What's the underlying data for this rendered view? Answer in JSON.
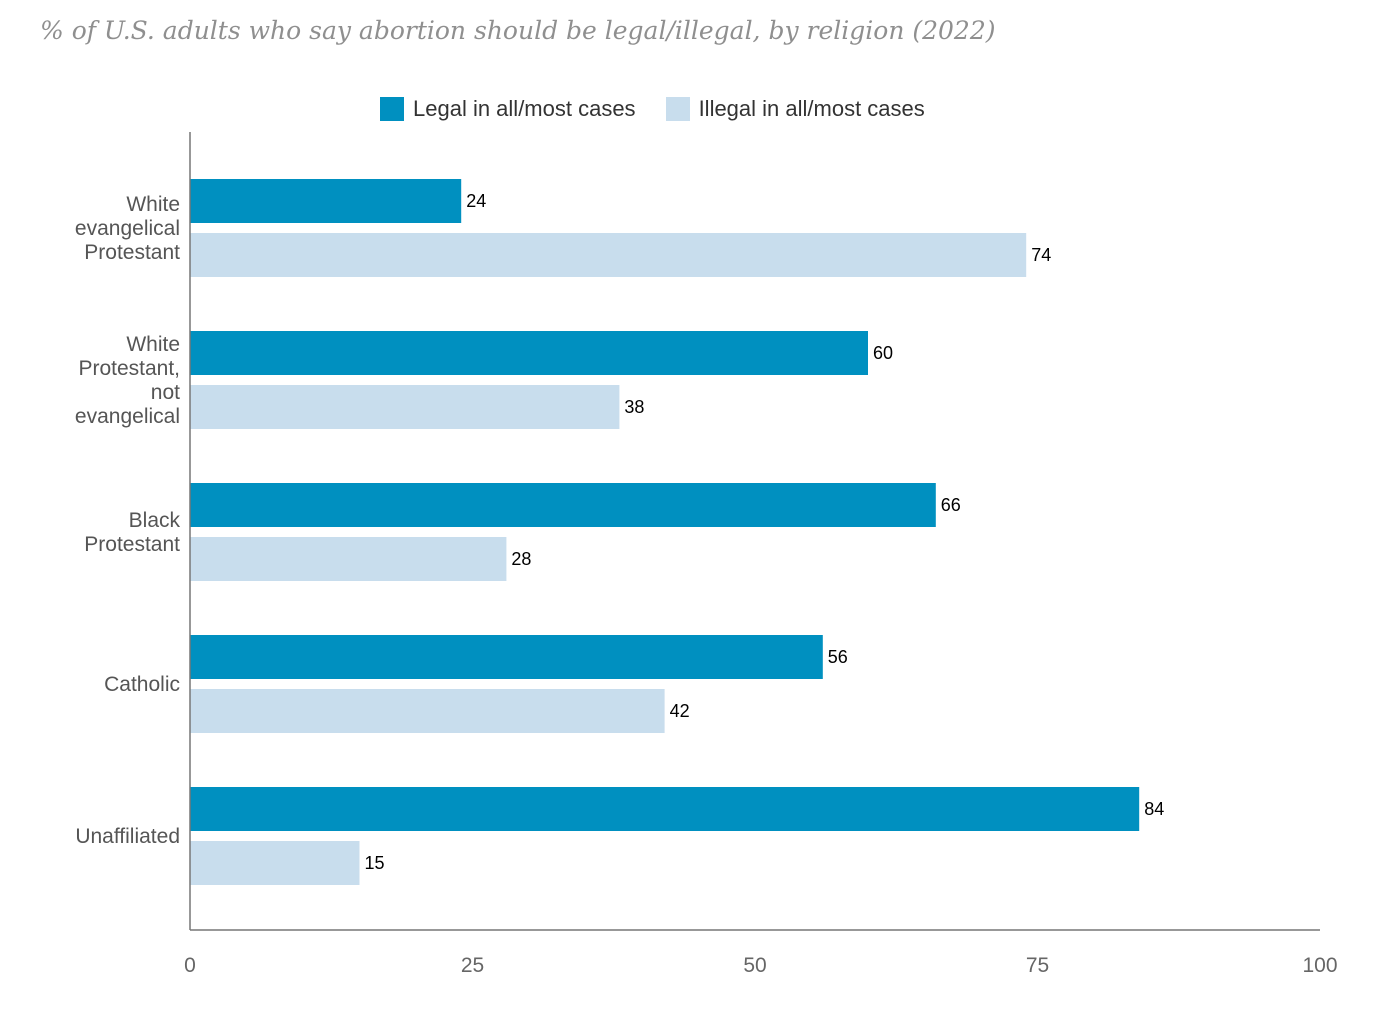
{
  "chart_data": {
    "type": "bar",
    "orientation": "horizontal",
    "title": "% of U.S. adults who say abortion should be legal/illegal, by religion (2022)",
    "categories": [
      [
        "White",
        "evangelical",
        "Protestant"
      ],
      [
        "White",
        "Protestant,",
        "not",
        "evangelical"
      ],
      [
        "Black",
        "Protestant"
      ],
      [
        "Catholic"
      ],
      [
        "Unaffiliated"
      ]
    ],
    "series": [
      {
        "name": "Legal in all/most cases",
        "color": "#0090c0",
        "values": [
          24,
          60,
          66,
          56,
          84
        ]
      },
      {
        "name": "Illegal in all/most cases",
        "color": "#c8dded",
        "values": [
          74,
          38,
          28,
          42,
          15
        ]
      }
    ],
    "xlim": [
      0,
      100
    ],
    "xticks": [
      "0",
      "25",
      "50",
      "75",
      "100"
    ],
    "xlabel": "",
    "ylabel": "",
    "legend_position": "top"
  }
}
